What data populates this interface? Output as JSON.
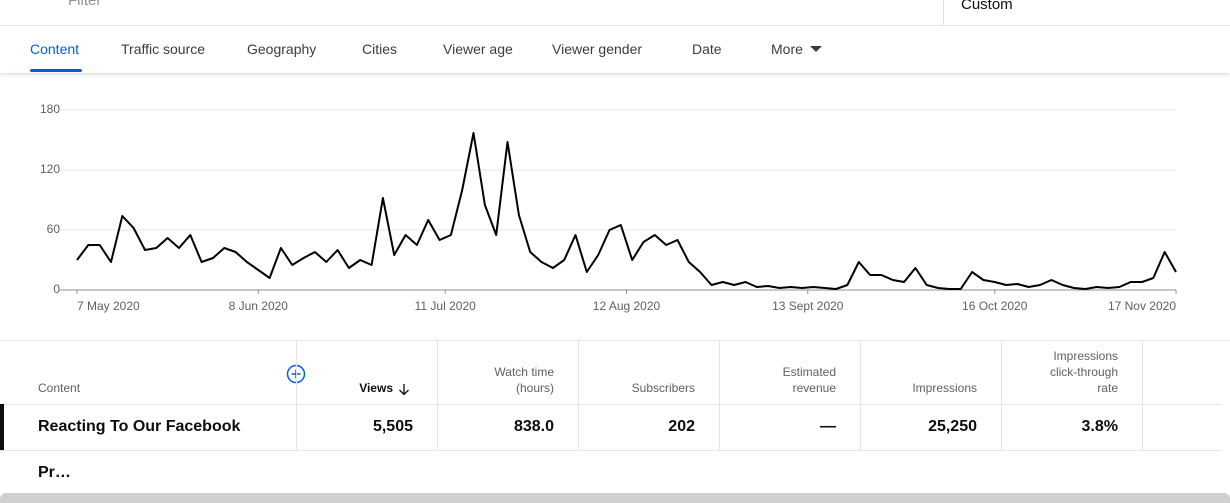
{
  "filter": {
    "placeholder": "Filter",
    "period": "Custom"
  },
  "tabs": [
    "Content",
    "Traffic source",
    "Geography",
    "Cities",
    "Viewer age",
    "Viewer gender",
    "Date",
    "More"
  ],
  "chart_data": {
    "type": "line",
    "color": "#000000",
    "grid": true,
    "x": [
      "2020-05-07",
      "2020-05-09",
      "2020-05-11",
      "2020-05-13",
      "2020-05-15",
      "2020-05-17",
      "2020-05-19",
      "2020-05-21",
      "2020-05-23",
      "2020-05-25",
      "2020-05-27",
      "2020-05-29",
      "2020-05-31",
      "2020-06-02",
      "2020-06-04",
      "2020-06-06",
      "2020-06-08",
      "2020-06-10",
      "2020-06-12",
      "2020-06-14",
      "2020-06-16",
      "2020-06-18",
      "2020-06-20",
      "2020-06-22",
      "2020-06-24",
      "2020-06-26",
      "2020-06-28",
      "2020-06-30",
      "2020-07-02",
      "2020-07-04",
      "2020-07-06",
      "2020-07-08",
      "2020-07-10",
      "2020-07-12",
      "2020-07-14",
      "2020-07-16",
      "2020-07-18",
      "2020-07-20",
      "2020-07-22",
      "2020-07-24",
      "2020-07-26",
      "2020-07-28",
      "2020-07-30",
      "2020-08-01",
      "2020-08-03",
      "2020-08-05",
      "2020-08-07",
      "2020-08-09",
      "2020-08-11",
      "2020-08-13",
      "2020-08-15",
      "2020-08-17",
      "2020-08-19",
      "2020-08-21",
      "2020-08-23",
      "2020-08-25",
      "2020-08-27",
      "2020-08-29",
      "2020-08-31",
      "2020-09-02",
      "2020-09-04",
      "2020-09-06",
      "2020-09-08",
      "2020-09-10",
      "2020-09-12",
      "2020-09-14",
      "2020-09-16",
      "2020-09-18",
      "2020-09-20",
      "2020-09-22",
      "2020-09-24",
      "2020-09-26",
      "2020-09-28",
      "2020-09-30",
      "2020-10-02",
      "2020-10-04",
      "2020-10-06",
      "2020-10-08",
      "2020-10-10",
      "2020-10-12",
      "2020-10-14",
      "2020-10-16",
      "2020-10-18",
      "2020-10-20",
      "2020-10-22",
      "2020-10-24",
      "2020-10-26",
      "2020-10-28",
      "2020-10-30",
      "2020-11-01",
      "2020-11-03",
      "2020-11-05",
      "2020-11-07",
      "2020-11-09",
      "2020-11-11",
      "2020-11-13",
      "2020-11-15",
      "2020-11-17"
    ],
    "values": [
      30,
      45,
      45,
      28,
      74,
      62,
      40,
      42,
      52,
      42,
      55,
      28,
      32,
      42,
      38,
      28,
      20,
      12,
      42,
      25,
      32,
      38,
      28,
      40,
      22,
      30,
      25,
      92,
      35,
      55,
      45,
      70,
      50,
      55,
      100,
      157,
      85,
      55,
      148,
      75,
      38,
      28,
      22,
      30,
      55,
      18,
      35,
      60,
      65,
      30,
      48,
      55,
      45,
      50,
      28,
      18,
      5,
      8,
      5,
      8,
      3,
      4,
      2,
      3,
      2,
      3,
      2,
      1,
      5,
      28,
      15,
      15,
      10,
      8,
      22,
      5,
      2,
      1,
      1,
      18,
      10,
      8,
      5,
      6,
      3,
      5,
      10,
      5,
      2,
      1,
      3,
      2,
      3,
      8,
      8,
      12,
      38,
      18
    ],
    "xlim": [
      "2020-05-07",
      "2020-11-17"
    ],
    "xticks": [
      {
        "value": "2020-05-07",
        "label": "7 May 2020"
      },
      {
        "value": "2020-06-08",
        "label": "8 Jun 2020"
      },
      {
        "value": "2020-07-11",
        "label": "11 Jul 2020"
      },
      {
        "value": "2020-08-12",
        "label": "12 Aug 2020"
      },
      {
        "value": "2020-09-13",
        "label": "13 Sept 2020"
      },
      {
        "value": "2020-10-16",
        "label": "16 Oct 2020"
      },
      {
        "value": "2020-11-17",
        "label": "17 Nov 2020"
      }
    ],
    "ylim": [
      0,
      180
    ],
    "yticks": [
      0,
      60,
      120,
      180
    ]
  },
  "table": {
    "headers": [
      "Content",
      "Views",
      "Watch time (hours)",
      "Subscribers",
      "Estimated revenue",
      "Impressions",
      "Impressions click-through rate"
    ],
    "rows": [
      [
        "Reacting To Our Facebook Pr…",
        "5,505",
        "838.0",
        "202",
        "—",
        "25,250",
        "3.8%"
      ]
    ]
  }
}
